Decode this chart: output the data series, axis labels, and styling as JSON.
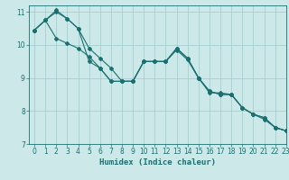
{
  "title": "",
  "xlabel": "Humidex (Indice chaleur)",
  "ylabel": "",
  "bg_color": "#cce8e8",
  "line_color": "#1a7070",
  "grid_color": "#99cccc",
  "xlim": [
    -0.5,
    23
  ],
  "ylim": [
    7,
    11.2
  ],
  "yticks": [
    7,
    8,
    9,
    10,
    11
  ],
  "xticks": [
    0,
    1,
    2,
    3,
    4,
    5,
    6,
    7,
    8,
    9,
    10,
    11,
    12,
    13,
    14,
    15,
    16,
    17,
    18,
    19,
    20,
    21,
    22,
    23
  ],
  "series1": {
    "x": [
      0,
      1,
      2,
      3,
      4,
      5,
      6,
      7,
      8,
      9,
      10,
      11,
      12,
      13,
      14,
      15,
      16,
      17,
      18,
      19,
      20,
      21,
      22,
      23
    ],
    "y": [
      10.45,
      10.75,
      11.0,
      10.8,
      10.5,
      9.5,
      9.3,
      8.9,
      8.9,
      8.9,
      9.5,
      9.5,
      9.5,
      9.9,
      9.6,
      9.0,
      8.6,
      8.5,
      8.5,
      8.1,
      7.9,
      7.8,
      7.5,
      7.4
    ]
  },
  "series2": {
    "x": [
      0,
      1,
      2,
      3,
      4,
      5,
      6,
      7,
      8,
      9,
      10,
      11,
      12,
      13,
      14,
      15,
      16,
      17,
      18,
      19,
      20,
      21,
      22,
      23
    ],
    "y": [
      10.45,
      10.75,
      10.2,
      10.05,
      9.9,
      9.65,
      9.3,
      8.9,
      8.9,
      8.9,
      9.5,
      9.5,
      9.5,
      9.85,
      9.55,
      9.0,
      8.55,
      8.55,
      8.5,
      8.1,
      7.9,
      7.75,
      7.5,
      7.4
    ]
  },
  "series3": {
    "x": [
      0,
      1,
      2,
      3,
      4,
      5,
      6,
      7,
      8,
      9,
      10,
      11,
      12,
      13,
      14,
      15,
      16,
      17,
      18,
      19,
      20,
      21,
      22,
      23
    ],
    "y": [
      10.45,
      10.75,
      11.05,
      10.8,
      10.5,
      9.9,
      9.6,
      9.3,
      8.9,
      8.9,
      9.5,
      9.5,
      9.5,
      9.9,
      9.6,
      9.0,
      8.6,
      8.5,
      8.5,
      8.1,
      7.9,
      7.8,
      7.5,
      7.4
    ]
  }
}
